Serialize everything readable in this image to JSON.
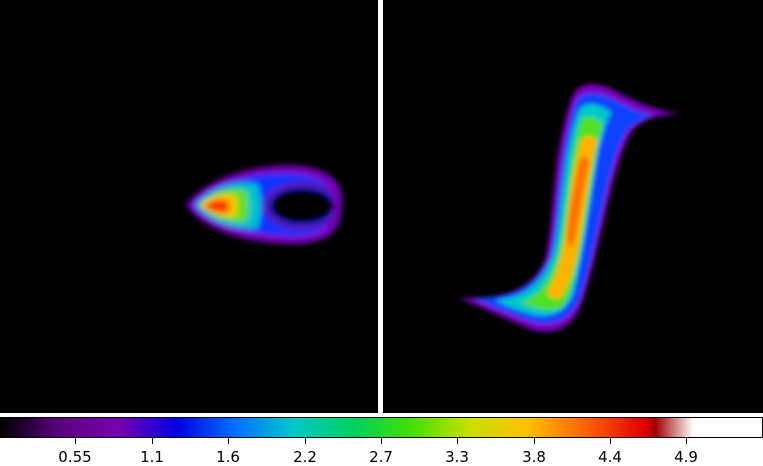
{
  "panels": [
    {
      "name": "left-intensity-map",
      "background": "#000000"
    },
    {
      "name": "right-intensity-map",
      "background": "#000000"
    }
  ],
  "colorbar": {
    "colormap": [
      "#000000",
      "#5a0080",
      "#7a00b0",
      "#0000e0",
      "#0070ff",
      "#00c8c8",
      "#00d060",
      "#40e000",
      "#c8e000",
      "#ffc000",
      "#ff6000",
      "#e00000",
      "#a00000",
      "#ffffff"
    ],
    "ticks": [
      "0.55",
      "1.1",
      "1.6",
      "2.2",
      "2.7",
      "3.3",
      "3.8",
      "4.4",
      "4.9"
    ]
  }
}
